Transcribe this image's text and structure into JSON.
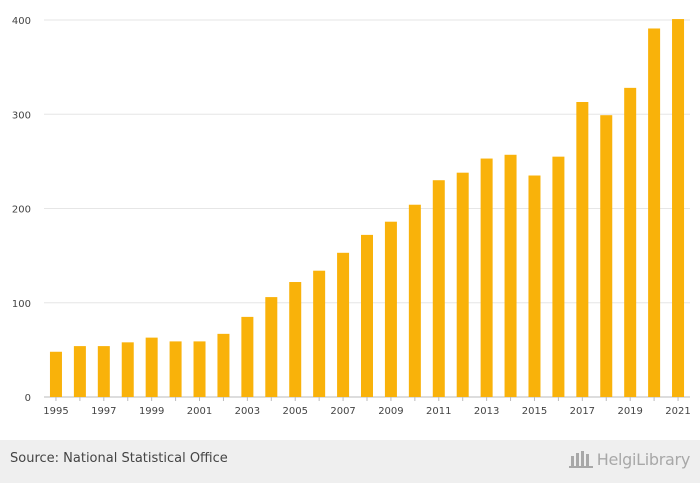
{
  "chart_data": {
    "type": "bar",
    "categories": [
      "1995",
      "1996",
      "1997",
      "1998",
      "1999",
      "2000",
      "2001",
      "2002",
      "2003",
      "2004",
      "2005",
      "2006",
      "2007",
      "2008",
      "2009",
      "2010",
      "2011",
      "2012",
      "2013",
      "2014",
      "2015",
      "2016",
      "2017",
      "2018",
      "2019",
      "2020",
      "2021"
    ],
    "values": [
      48,
      54,
      54,
      58,
      63,
      59,
      59,
      67,
      85,
      106,
      122,
      134,
      153,
      172,
      186,
      204,
      230,
      238,
      253,
      257,
      235,
      255,
      313,
      299,
      328,
      391,
      401
    ],
    "x_tick_labels": [
      "1995",
      "1997",
      "1999",
      "2001",
      "2003",
      "2005",
      "2007",
      "2009",
      "2011",
      "2013",
      "2015",
      "2017",
      "2019",
      "2021"
    ],
    "y_ticks": [
      0,
      100,
      200,
      300,
      400
    ],
    "ylim": [
      0,
      400
    ],
    "title": "",
    "xlabel": "",
    "ylabel": "",
    "grid": true,
    "bar_color": "#f9b20a",
    "grid_color": "#e6e6e6"
  },
  "footer": {
    "source": "Source: National Statistical Office",
    "brand_name": "HelgiLibrary"
  },
  "brand_icon": "building-icon"
}
